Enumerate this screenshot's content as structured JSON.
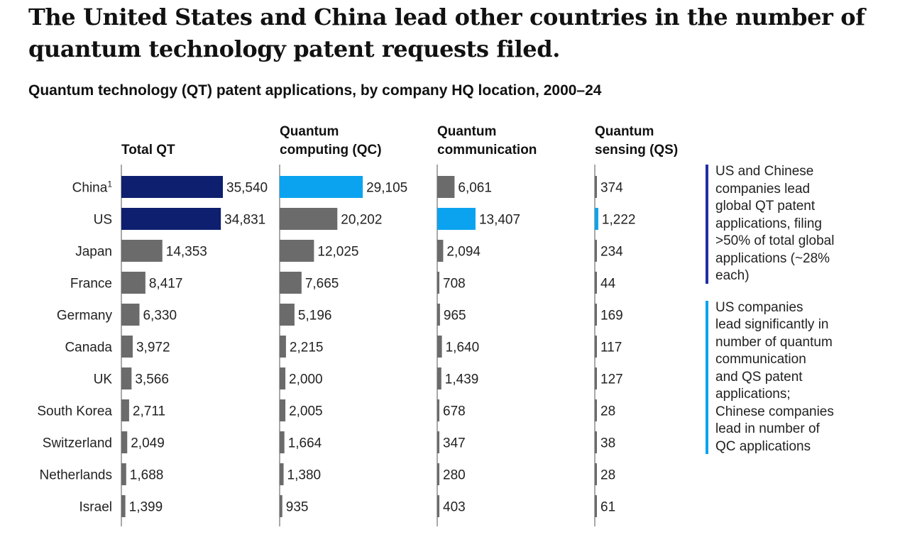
{
  "title": "The United States and China lead other countries in the number of quantum technology patent requests filed.",
  "subtitle": "Quantum technology (QT) patent applications, by company HQ location, 2000–24",
  "colors": {
    "bar_default": "#6b6b6b",
    "china_total": "#0d1f6e",
    "qc_highlight": "#0ba3ef",
    "callout_dark": "#1f2fa6",
    "callout_light": "#0ba3ef"
  },
  "chart_data": {
    "type": "bar",
    "orientation": "horizontal",
    "categories": [
      "China",
      "US",
      "Japan",
      "France",
      "Germany",
      "Canada",
      "UK",
      "South Korea",
      "Switzerland",
      "Netherlands",
      "Israel"
    ],
    "category_footnote": {
      "China": "1"
    },
    "panels": [
      {
        "name": "Total QT",
        "header_lines": [
          "",
          "Total QT"
        ],
        "values": [
          35540,
          34831,
          14353,
          8417,
          6330,
          3972,
          3566,
          2711,
          2049,
          1688,
          1399
        ],
        "value_labels": [
          "35,540",
          "34,831",
          "14,353",
          "8,417",
          "6,330",
          "3,972",
          "3,566",
          "2,711",
          "2,049",
          "1,688",
          "1,399"
        ],
        "highlight": {
          "China": "china_total",
          "US": "china_total"
        }
      },
      {
        "name": "Quantum computing (QC)",
        "header_lines": [
          "Quantum",
          "computing (QC)"
        ],
        "values": [
          29105,
          20202,
          12025,
          7665,
          5196,
          2215,
          2000,
          2005,
          1664,
          1380,
          935
        ],
        "value_labels": [
          "29,105",
          "20,202",
          "12,025",
          "7,665",
          "5,196",
          "2,215",
          "2,000",
          "2,005",
          "1,664",
          "1,380",
          "935"
        ],
        "highlight": {
          "China": "qc_highlight"
        }
      },
      {
        "name": "Quantum communication",
        "header_lines": [
          "Quantum",
          "communication"
        ],
        "values": [
          6061,
          13407,
          2094,
          708,
          965,
          1640,
          1439,
          678,
          347,
          280,
          403
        ],
        "value_labels": [
          "6,061",
          "13,407",
          "2,094",
          "708",
          "965",
          "1,640",
          "1,439",
          "678",
          "347",
          "280",
          "403"
        ],
        "highlight": {
          "US": "qc_highlight"
        }
      },
      {
        "name": "Quantum sensing (QS)",
        "header_lines": [
          "Quantum",
          "sensing (QS)"
        ],
        "values": [
          374,
          1222,
          234,
          44,
          169,
          117,
          127,
          28,
          38,
          28,
          61
        ],
        "value_labels": [
          "374",
          "1,222",
          "234",
          "44",
          "169",
          "117",
          "127",
          "28",
          "38",
          "28",
          "61"
        ],
        "highlight": {
          "US": "qc_highlight"
        }
      }
    ]
  },
  "callouts": [
    {
      "text": "US and Chinese\ncompanies lead\nglobal QT patent\napplications, filing\n>50% of total global\napplications (~28%\neach)",
      "color": "#1f2fa6"
    },
    {
      "text": "US companies\nlead significantly in\nnumber of quantum\ncommunication\nand QS patent\napplications;\nChinese companies\nlead in number of\nQC applications",
      "color": "#0ba3ef"
    }
  ]
}
